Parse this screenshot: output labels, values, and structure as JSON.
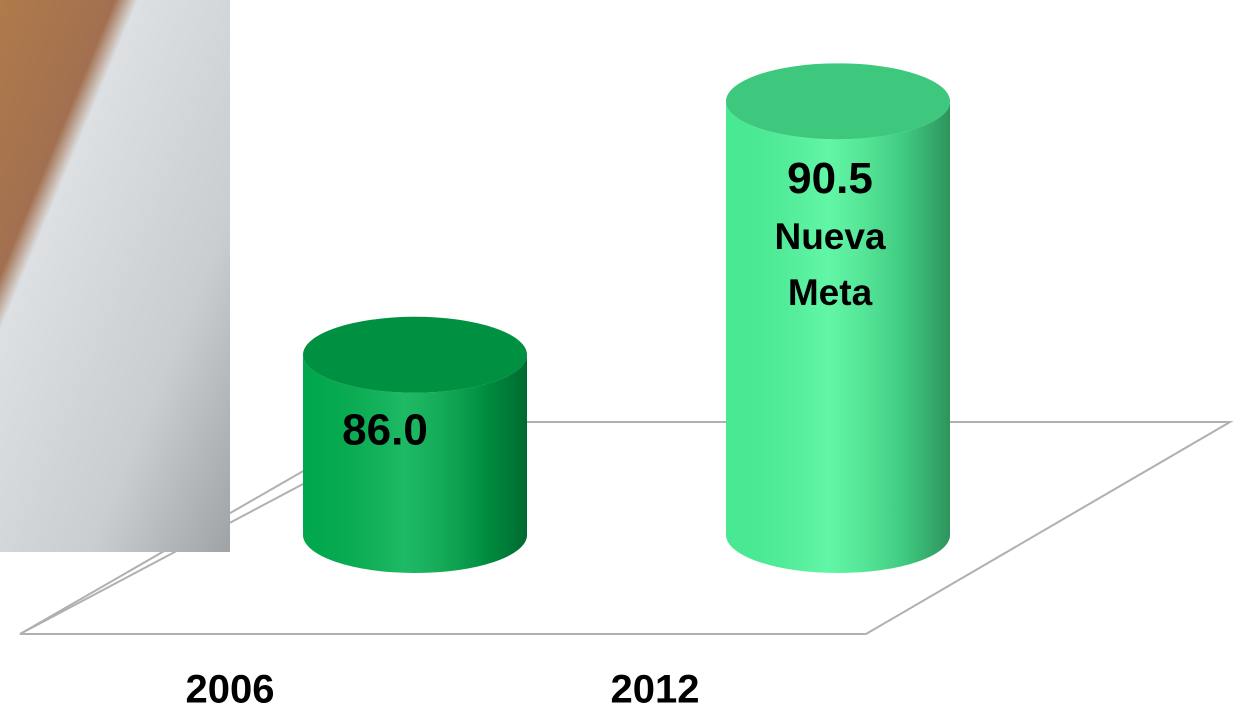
{
  "chart_data": {
    "type": "cylinder",
    "categories": [
      "2006",
      "2012"
    ],
    "values": [
      86.0,
      90.5
    ],
    "value_labels": [
      "86.0",
      "90.5"
    ],
    "annotations": [
      null,
      [
        "Nueva",
        "Meta"
      ]
    ],
    "colors": [
      "#00b050",
      "#4cf59a"
    ],
    "ylim": [
      82.8,
      91.5
    ]
  }
}
